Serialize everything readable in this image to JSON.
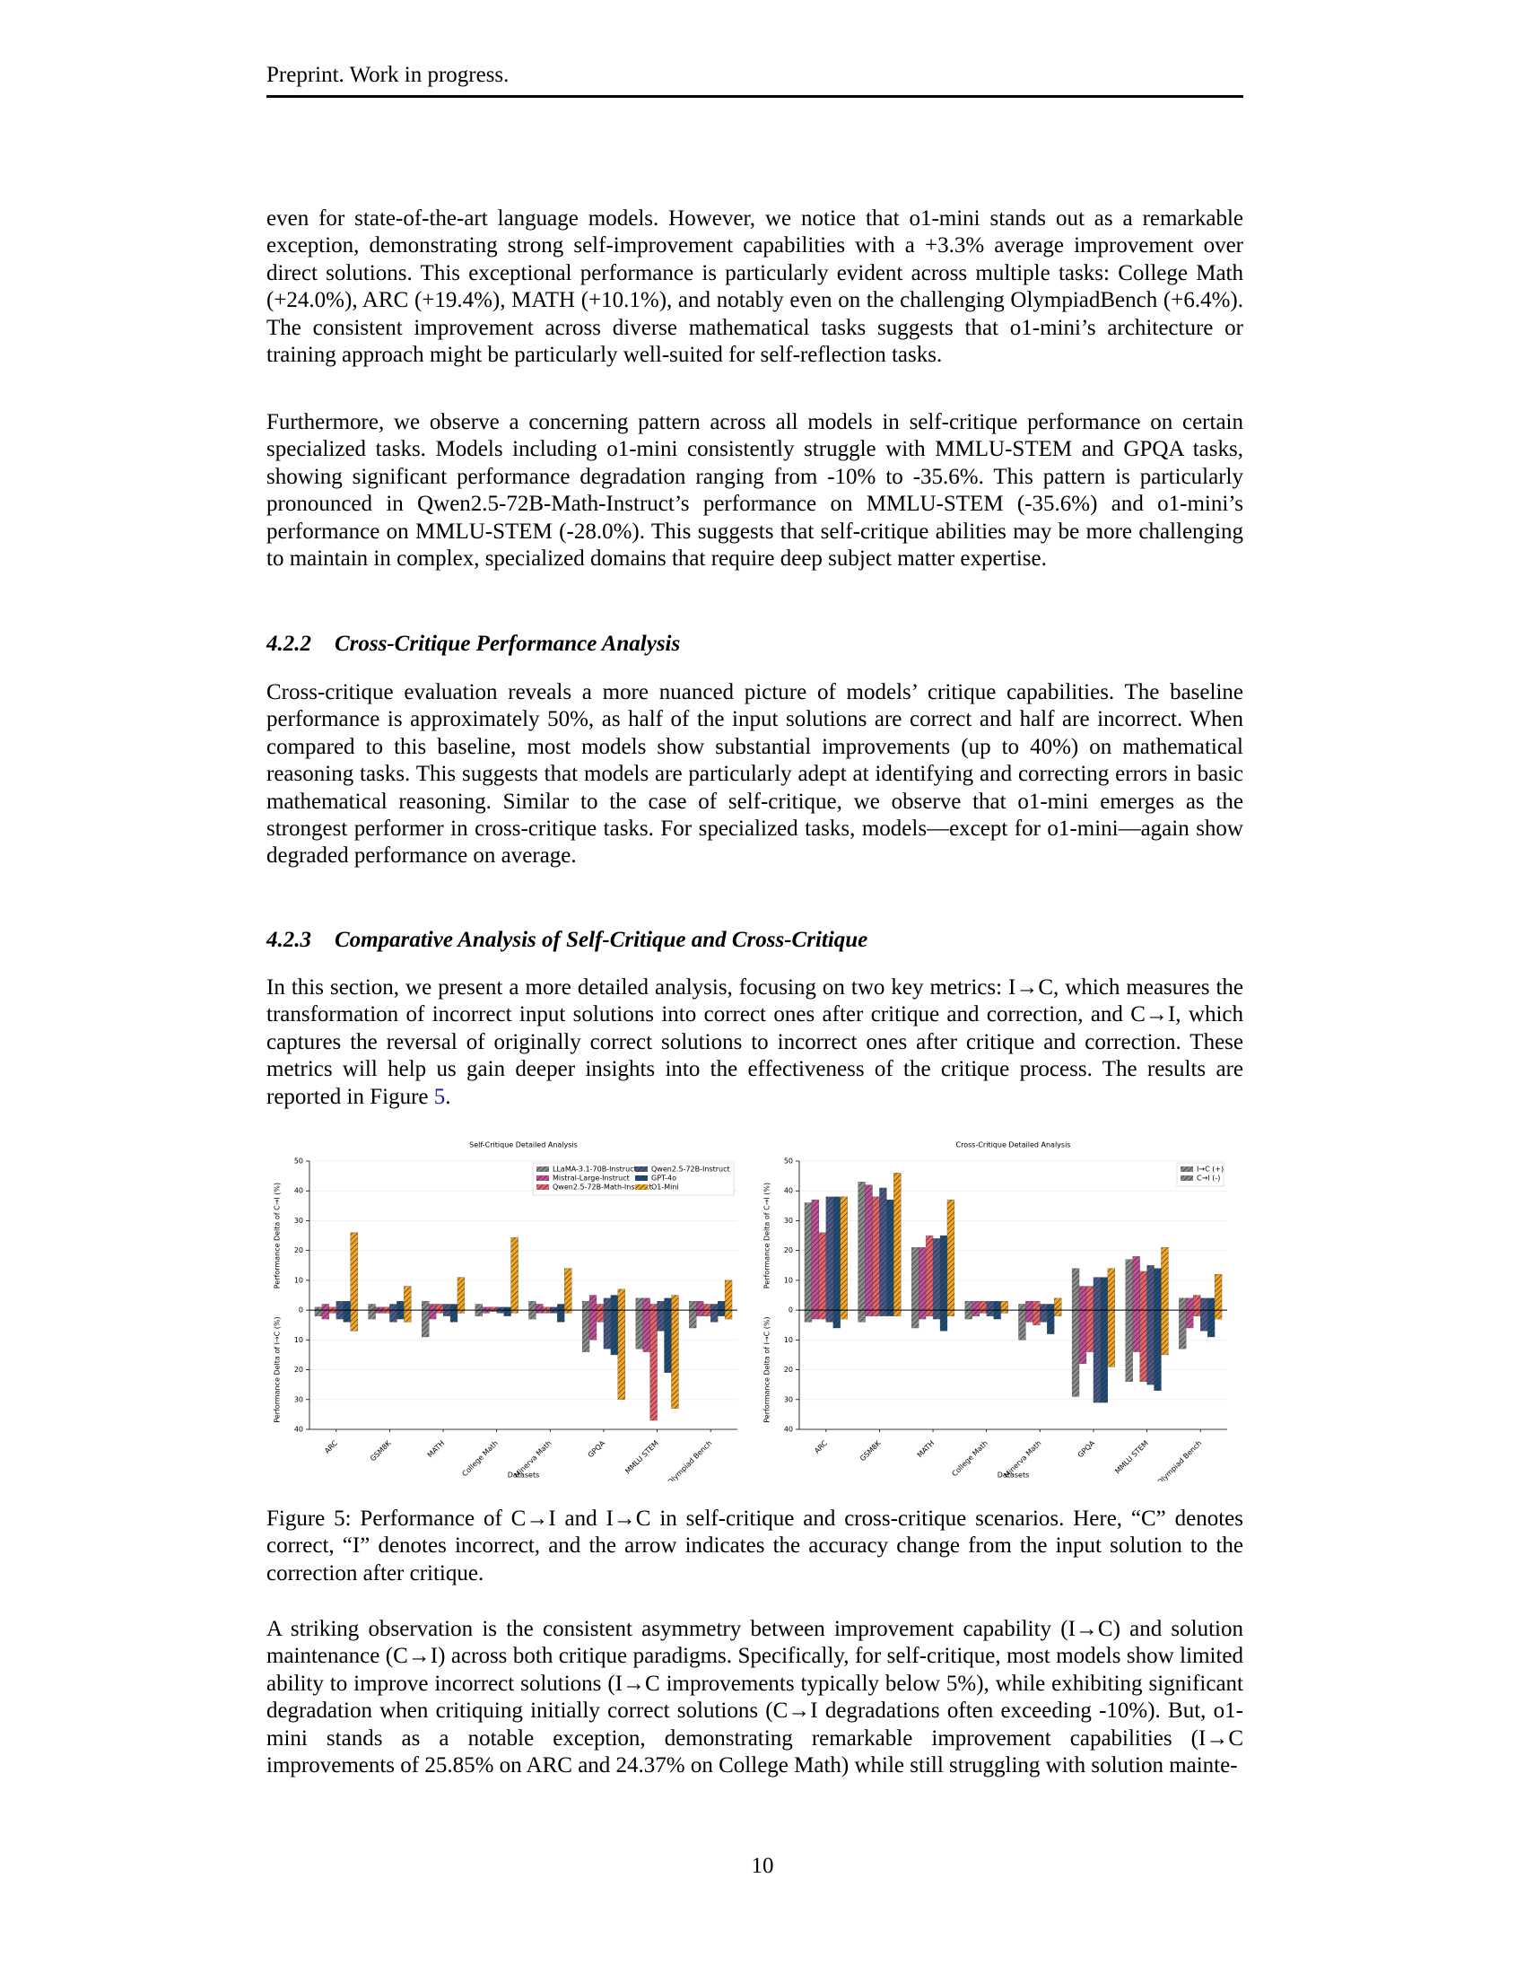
{
  "header": "Preprint. Work in progress.",
  "p1": "even for state-of-the-art language models. However, we notice that o1-mini stands out as a remarkable exception, demonstrating strong self-improvement capabilities with a +3.3% average improvement over direct solutions. This exceptional performance is particularly evident across multiple tasks: College Math (+24.0%), ARC (+19.4%), MATH (+10.1%), and notably even on the challenging OlympiadBench (+6.4%). The consistent improvement across diverse mathematical tasks suggests that o1-mini’s architecture or training approach might be particularly well-suited for self-reflection tasks.",
  "p2": "Furthermore, we observe a concerning pattern across all models in self-critique performance on certain specialized tasks. Models including o1-mini consistently struggle with MMLU-STEM and GPQA tasks, showing significant performance degradation ranging from -10% to -35.6%. This pattern is particularly pronounced in Qwen2.5-72B-Math-Instruct’s performance on MMLU-STEM (-35.6%) and o1-mini’s performance on MMLU-STEM (-28.0%). This suggests that self-critique abilities may be more challenging to maintain in complex, specialized domains that require deep subject matter expertise.",
  "s1": {
    "number": "4.2.2",
    "title": "Cross-Critique Performance Analysis"
  },
  "p3": "Cross-critique evaluation reveals a more nuanced picture of models’ critique capabilities. The baseline performance is approximately 50%, as half of the input solutions are correct and half are incorrect. When compared to this baseline, most models show substantial improvements (up to 40%) on mathematical reasoning tasks. This suggests that models are particularly adept at identifying and correcting errors in basic mathematical reasoning. Similar to the case of self-critique, we observe that o1-mini emerges as the strongest performer in cross-critique tasks. For specialized tasks, models—except for o1-mini—again show degraded performance on average.",
  "s2": {
    "number": "4.2.3",
    "title": "Comparative Analysis of Self-Critique and Cross-Critique"
  },
  "p4": {
    "text": "In this section, we present a more detailed analysis, focusing on two key metrics: I→C, which measures the transformation of incorrect input solutions into correct ones after critique and correction, and C→I, which captures the reversal of originally correct solutions to incorrect ones after critique and correction. These metrics will help us gain deeper insights into the effectiveness of the critique process. The results are reported in Figure ",
    "ref": "5",
    "end": "."
  },
  "caption": "Figure 5: Performance of C→I and I→C in self-critique and cross-critique scenarios. Here, “C” denotes correct, “I” denotes incorrect, and the arrow indicates the accuracy change from the input solution to the correction after critique.",
  "p5": "A striking observation is the consistent asymmetry between improvement capability (I→C) and solution maintenance (C→I) across both critique paradigms. Specifically, for self-critique, most models show limited ability to improve incorrect solutions (I→C improvements typically below 5%), while exhibiting significant degradation when critiquing initially correct solutions (C→I degradations often exceeding -10%). But, o1-mini stands as a notable exception, demonstrating remarkable improvement capabilities (I→C improvements of 25.85% on ARC and 24.37% on College Math) while still struggling with solution mainte-",
  "page_number": "10",
  "chart_data": [
    {
      "type": "bar",
      "title": "Self-Critique Detailed Analysis",
      "x_label": "Datasets",
      "y_label_top": "Performance Delta of C→I (%)",
      "y_label_bottom": "Performance Delta of I→C (%)",
      "categories": [
        "ARC",
        "GSM8K",
        "MATH",
        "College Math",
        "Minerva Math",
        "GPQA",
        "MMLU STEM",
        "Olympiad Bench"
      ],
      "ylim": [
        -40,
        50
      ],
      "yticks": [
        {
          "value": -40,
          "label": "40"
        },
        {
          "value": -30,
          "label": "30"
        },
        {
          "value": -20,
          "label": "20"
        },
        {
          "value": -10,
          "label": "10"
        },
        0,
        10,
        20,
        30,
        40,
        50
      ],
      "grid": true,
      "legend": "upper right",
      "series": [
        {
          "name": "LLaMA-3.1-70B-Instruct",
          "color": "#8c8c8c",
          "ic": [
            1,
            2,
            3,
            2,
            3,
            3,
            4,
            3
          ],
          "ci": [
            -2,
            -3,
            -9,
            -2,
            -3,
            -14,
            -13,
            -6
          ]
        },
        {
          "name": "Mistral-Large-Instruct",
          "color": "#c4509a",
          "ic": [
            2,
            1,
            2,
            1,
            2,
            5,
            4,
            3
          ],
          "ci": [
            -3,
            -1,
            -3,
            -1,
            -1,
            -10,
            -14,
            -2
          ]
        },
        {
          "name": "Qwen2.5-72B-Math-Instruct",
          "color": "#e8636b",
          "ic": [
            1,
            1,
            2,
            1,
            1,
            2,
            2,
            2
          ],
          "ci": [
            -1,
            -1,
            -1,
            -0.5,
            -1,
            -4,
            -37,
            -2
          ]
        },
        {
          "name": "Qwen2.5-72B-Instruct",
          "color": "#4a5a8a",
          "ic": [
            3,
            2,
            2,
            1,
            1,
            4,
            3,
            2
          ],
          "ci": [
            -3,
            -4,
            -2,
            -1,
            -1,
            -13,
            -7,
            -4
          ]
        },
        {
          "name": "GPT-4o",
          "color": "#1f4e79",
          "ic": [
            3,
            3,
            2,
            1,
            2,
            5,
            4,
            3
          ],
          "ci": [
            -4,
            -3,
            -4,
            -2,
            -4,
            -15,
            -21,
            -2
          ]
        },
        {
          "name": "O1-Mini",
          "color": "#f5a623",
          "ic": [
            26,
            8,
            11,
            24.4,
            14,
            7,
            5,
            10
          ],
          "ci": [
            -7,
            -4,
            -1,
            -1,
            -1,
            -30,
            -33,
            -3
          ]
        }
      ]
    },
    {
      "type": "bar",
      "title": "Cross-Critique Detailed Analysis",
      "x_label": "Datasets",
      "y_label_top": "Performance Delta of C→I (%)",
      "y_label_bottom": "Performance Delta of I→C (%)",
      "categories": [
        "ARC",
        "GSM8K",
        "MATH",
        "College Math",
        "Minerva Math",
        "GPQA",
        "MMLU STEM",
        "Olympiad Bench"
      ],
      "ylim": [
        -40,
        50
      ],
      "yticks": [
        {
          "value": -40,
          "label": "40"
        },
        {
          "value": -30,
          "label": "30"
        },
        {
          "value": -20,
          "label": "20"
        },
        {
          "value": -10,
          "label": "10"
        },
        0,
        10,
        20,
        30,
        40,
        50
      ],
      "grid": true,
      "legend": "upper right",
      "legend_entries": [
        "I→C (+)",
        "C→I (-)"
      ],
      "series": [
        {
          "color": "#8c8c8c",
          "ic": [
            36,
            43,
            21,
            3,
            2,
            14,
            17,
            4
          ],
          "ci": [
            -4,
            -4,
            -6,
            -3,
            -10,
            -29,
            -24,
            -13
          ]
        },
        {
          "color": "#c4509a",
          "ic": [
            37,
            42,
            21,
            3,
            3,
            8,
            18,
            4
          ],
          "ci": [
            -3,
            -2,
            -3,
            -2,
            -4,
            -18,
            -14,
            -6
          ]
        },
        {
          "color": "#e8636b",
          "ic": [
            26,
            38,
            25,
            3,
            3,
            8,
            13,
            5
          ],
          "ci": [
            -3,
            -2,
            -2,
            -1,
            -5,
            -14,
            -24,
            -2
          ]
        },
        {
          "color": "#4a5a8a",
          "ic": [
            38,
            41,
            24,
            3,
            2,
            11,
            15,
            4
          ],
          "ci": [
            -4,
            -2,
            -3,
            -2,
            -4,
            -31,
            -25,
            -7
          ]
        },
        {
          "color": "#1f4e79",
          "ic": [
            38,
            37,
            25,
            3,
            2,
            11,
            14,
            4
          ],
          "ci": [
            -6,
            -2,
            -7,
            -3,
            -8,
            -31,
            -27,
            -9
          ]
        },
        {
          "color": "#f5a623",
          "ic": [
            38,
            46,
            37,
            3,
            4,
            14,
            21,
            12
          ],
          "ci": [
            -3,
            -2,
            -2,
            -1,
            -2,
            -19,
            -15,
            -3
          ]
        }
      ]
    }
  ]
}
